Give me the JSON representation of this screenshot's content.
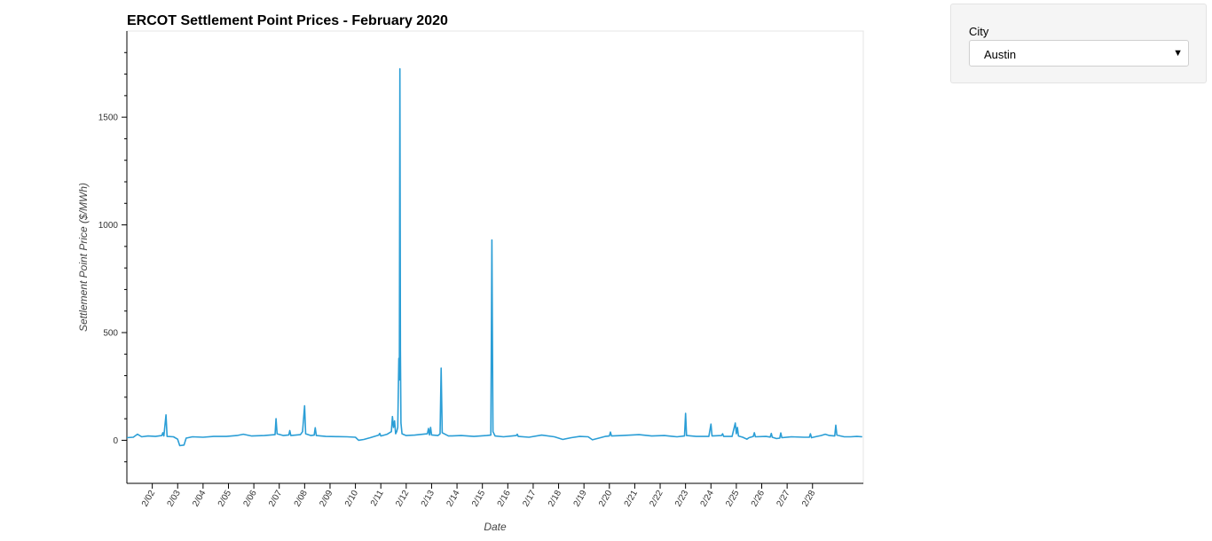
{
  "chart_data": {
    "type": "line",
    "title": "ERCOT Settlement Point Prices - February 2020",
    "xlabel": "Date",
    "ylabel": "Settlement Point Price ($/MWh)",
    "ylim": [
      -200,
      1900
    ],
    "xlim": [
      "2020-02-01",
      "2020-02-29"
    ],
    "y_ticks": [
      0,
      500,
      1000,
      1500
    ],
    "x_tick_labels": [
      "2/02",
      "2/03",
      "2/04",
      "2/05",
      "2/06",
      "2/07",
      "2/08",
      "2/09",
      "2/10",
      "2/11",
      "2/12",
      "2/13",
      "2/14",
      "2/15",
      "2/16",
      "2/17",
      "2/18",
      "2/19",
      "2/20",
      "2/21",
      "2/22",
      "2/23",
      "2/24",
      "2/25",
      "2/26",
      "2/27",
      "2/28"
    ],
    "grid": false,
    "series": [
      {
        "color": "#2b9ed6",
        "points": [
          [
            "2020-02-01 00:00",
            12
          ],
          [
            "2020-02-01 06:00",
            14
          ],
          [
            "2020-02-01 10:00",
            28
          ],
          [
            "2020-02-01 14:00",
            16
          ],
          [
            "2020-02-01 20:00",
            20
          ],
          [
            "2020-02-02 03:00",
            18
          ],
          [
            "2020-02-02 09:00",
            22
          ],
          [
            "2020-02-02 10:00",
            35
          ],
          [
            "2020-02-02 11:00",
            20
          ],
          [
            "2020-02-02 13:00",
            118
          ],
          [
            "2020-02-02 14:00",
            18
          ],
          [
            "2020-02-02 20:00",
            16
          ],
          [
            "2020-02-03 00:00",
            5
          ],
          [
            "2020-02-03 02:00",
            -25
          ],
          [
            "2020-02-03 06:00",
            -22
          ],
          [
            "2020-02-03 08:00",
            10
          ],
          [
            "2020-02-03 14:00",
            16
          ],
          [
            "2020-02-04 00:00",
            14
          ],
          [
            "2020-02-04 10:00",
            18
          ],
          [
            "2020-02-04 22:00",
            18
          ],
          [
            "2020-02-05 08:00",
            22
          ],
          [
            "2020-02-05 14:00",
            28
          ],
          [
            "2020-02-05 22:00",
            20
          ],
          [
            "2020-02-06 10:00",
            22
          ],
          [
            "2020-02-06 20:00",
            26
          ],
          [
            "2020-02-06 21:00",
            100
          ],
          [
            "2020-02-06 22:00",
            30
          ],
          [
            "2020-02-07 04:00",
            22
          ],
          [
            "2020-02-07 09:00",
            25
          ],
          [
            "2020-02-07 10:00",
            45
          ],
          [
            "2020-02-07 11:00",
            22
          ],
          [
            "2020-02-07 20:00",
            26
          ],
          [
            "2020-02-07 22:00",
            40
          ],
          [
            "2020-02-08 00:00",
            160
          ],
          [
            "2020-02-08 01:00",
            30
          ],
          [
            "2020-02-08 06:00",
            22
          ],
          [
            "2020-02-08 09:00",
            24
          ],
          [
            "2020-02-08 10:00",
            58
          ],
          [
            "2020-02-08 11:00",
            22
          ],
          [
            "2020-02-08 20:00",
            18
          ],
          [
            "2020-02-09 06:00",
            17
          ],
          [
            "2020-02-09 16:00",
            16
          ],
          [
            "2020-02-10 00:00",
            14
          ],
          [
            "2020-02-10 03:00",
            0
          ],
          [
            "2020-02-10 08:00",
            4
          ],
          [
            "2020-02-10 14:00",
            12
          ],
          [
            "2020-02-10 22:00",
            24
          ],
          [
            "2020-02-10 23:00",
            32
          ],
          [
            "2020-02-11 00:00",
            20
          ],
          [
            "2020-02-11 06:00",
            28
          ],
          [
            "2020-02-11 10:00",
            40
          ],
          [
            "2020-02-11 11:00",
            110
          ],
          [
            "2020-02-11 12:00",
            60
          ],
          [
            "2020-02-11 13:00",
            90
          ],
          [
            "2020-02-11 14:00",
            30
          ],
          [
            "2020-02-11 15:00",
            40
          ],
          [
            "2020-02-11 16:00",
            60
          ],
          [
            "2020-02-11 17:00",
            380
          ],
          [
            "2020-02-11 17:30",
            280
          ],
          [
            "2020-02-11 18:00",
            1725
          ],
          [
            "2020-02-11 18:30",
            420
          ],
          [
            "2020-02-11 19:00",
            80
          ],
          [
            "2020-02-11 20:00",
            30
          ],
          [
            "2020-02-12 00:00",
            22
          ],
          [
            "2020-02-12 08:00",
            24
          ],
          [
            "2020-02-12 20:00",
            30
          ],
          [
            "2020-02-12 21:00",
            55
          ],
          [
            "2020-02-12 22:00",
            25
          ],
          [
            "2020-02-12 23:00",
            60
          ],
          [
            "2020-02-13 00:00",
            25
          ],
          [
            "2020-02-13 06:00",
            22
          ],
          [
            "2020-02-13 08:00",
            30
          ],
          [
            "2020-02-13 09:00",
            335
          ],
          [
            "2020-02-13 10:00",
            35
          ],
          [
            "2020-02-13 16:00",
            20
          ],
          [
            "2020-02-14 04:00",
            22
          ],
          [
            "2020-02-14 16:00",
            18
          ],
          [
            "2020-02-15 04:00",
            22
          ],
          [
            "2020-02-15 08:00",
            24
          ],
          [
            "2020-02-15 09:00",
            930
          ],
          [
            "2020-02-15 10:00",
            40
          ],
          [
            "2020-02-15 12:00",
            20
          ],
          [
            "2020-02-15 20:00",
            16
          ],
          [
            "2020-02-16 04:00",
            20
          ],
          [
            "2020-02-16 08:00",
            22
          ],
          [
            "2020-02-16 09:00",
            28
          ],
          [
            "2020-02-16 10:00",
            18
          ],
          [
            "2020-02-16 20:00",
            14
          ],
          [
            "2020-02-17 08:00",
            24
          ],
          [
            "2020-02-17 20:00",
            16
          ],
          [
            "2020-02-18 00:00",
            10
          ],
          [
            "2020-02-18 04:00",
            4
          ],
          [
            "2020-02-18 12:00",
            12
          ],
          [
            "2020-02-18 20:00",
            18
          ],
          [
            "2020-02-19 04:00",
            16
          ],
          [
            "2020-02-19 08:00",
            2
          ],
          [
            "2020-02-19 14:00",
            10
          ],
          [
            "2020-02-19 20:00",
            18
          ],
          [
            "2020-02-20 00:00",
            20
          ],
          [
            "2020-02-20 01:00",
            38
          ],
          [
            "2020-02-20 02:00",
            20
          ],
          [
            "2020-02-20 12:00",
            22
          ],
          [
            "2020-02-21 04:00",
            26
          ],
          [
            "2020-02-21 16:00",
            20
          ],
          [
            "2020-02-22 04:00",
            22
          ],
          [
            "2020-02-22 12:00",
            18
          ],
          [
            "2020-02-22 16:00",
            16
          ],
          [
            "2020-02-22 23:00",
            20
          ],
          [
            "2020-02-23 00:00",
            125
          ],
          [
            "2020-02-23 01:00",
            22
          ],
          [
            "2020-02-23 10:00",
            18
          ],
          [
            "2020-02-23 22:00",
            18
          ],
          [
            "2020-02-24 00:00",
            75
          ],
          [
            "2020-02-24 01:00",
            20
          ],
          [
            "2020-02-24 10:00",
            22
          ],
          [
            "2020-02-24 11:00",
            30
          ],
          [
            "2020-02-24 12:00",
            18
          ],
          [
            "2020-02-24 20:00",
            18
          ],
          [
            "2020-02-24 23:00",
            80
          ],
          [
            "2020-02-25 00:00",
            30
          ],
          [
            "2020-02-25 01:00",
            60
          ],
          [
            "2020-02-25 02:00",
            20
          ],
          [
            "2020-02-25 06:00",
            14
          ],
          [
            "2020-02-25 10:00",
            5
          ],
          [
            "2020-02-25 12:00",
            12
          ],
          [
            "2020-02-25 16:00",
            18
          ],
          [
            "2020-02-25 17:00",
            35
          ],
          [
            "2020-02-25 18:00",
            16
          ],
          [
            "2020-02-26 04:00",
            18
          ],
          [
            "2020-02-26 08:00",
            15
          ],
          [
            "2020-02-26 09:00",
            32
          ],
          [
            "2020-02-26 10:00",
            14
          ],
          [
            "2020-02-26 14:00",
            8
          ],
          [
            "2020-02-26 17:00",
            10
          ],
          [
            "2020-02-26 18:00",
            34
          ],
          [
            "2020-02-26 19:00",
            12
          ],
          [
            "2020-02-27 04:00",
            16
          ],
          [
            "2020-02-27 16:00",
            14
          ],
          [
            "2020-02-27 21:00",
            14
          ],
          [
            "2020-02-27 22:00",
            30
          ],
          [
            "2020-02-27 23:00",
            12
          ],
          [
            "2020-02-28 04:00",
            18
          ],
          [
            "2020-02-28 08:00",
            22
          ],
          [
            "2020-02-28 12:00",
            28
          ],
          [
            "2020-02-28 16:00",
            22
          ],
          [
            "2020-02-28 21:00",
            20
          ],
          [
            "2020-02-28 22:00",
            70
          ],
          [
            "2020-02-28 23:00",
            24
          ],
          [
            "2020-02-29 06:00",
            16
          ],
          [
            "2020-02-29 12:00",
            16
          ],
          [
            "2020-02-29 18:00",
            18
          ],
          [
            "2020-02-29 23:00",
            16
          ]
        ]
      }
    ]
  },
  "widget": {
    "label": "City",
    "selected": "Austin"
  }
}
